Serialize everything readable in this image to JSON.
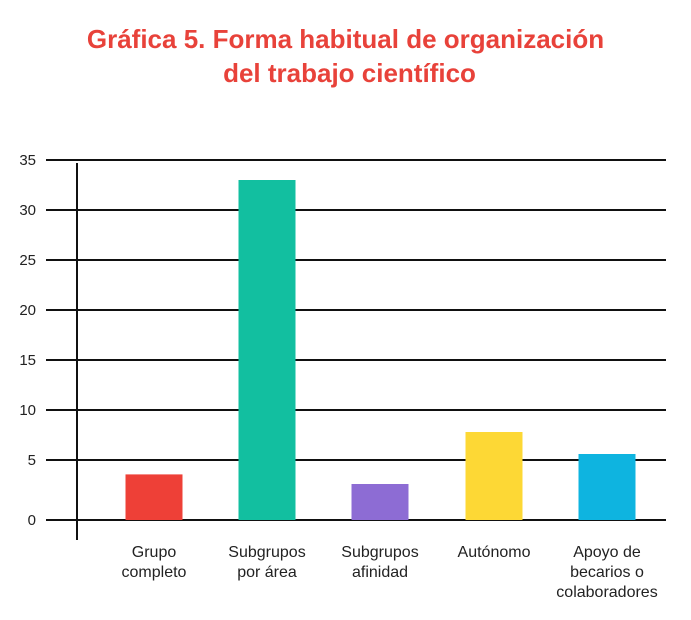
{
  "chart_data": {
    "type": "bar",
    "title_lines": [
      "Gráfica 5. Forma habitual de organización",
      "del trabajo científico"
    ],
    "categories": [
      [
        "Grupo",
        "completo"
      ],
      [
        "Subgrupos",
        "por área"
      ],
      [
        "Subgrupos",
        "afinidad"
      ],
      [
        "Autónomo"
      ],
      [
        "Apoyo de",
        "becarios o",
        "colaboradores"
      ]
    ],
    "values": [
      3.8,
      33,
      3,
      7.8,
      5.6
    ],
    "colors": [
      "#ee4037",
      "#12bfa0",
      "#8d6cd4",
      "#fdd835",
      "#0eb4e0"
    ],
    "yticks": [
      0,
      5,
      10,
      15,
      20,
      25,
      30,
      35
    ],
    "grid": true,
    "legend": "none"
  }
}
